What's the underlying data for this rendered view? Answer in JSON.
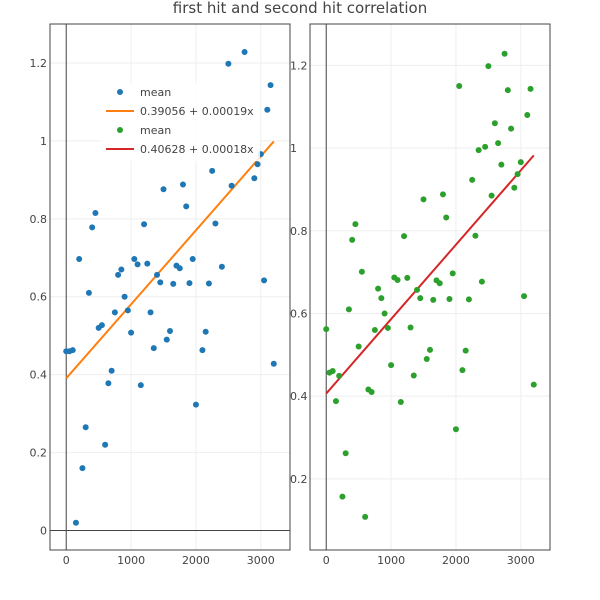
{
  "chart_data": [
    {
      "type": "scatter",
      "title": "first hit and second hit correlation",
      "xlim": [
        -250,
        3450
      ],
      "ylim": [
        -0.05,
        1.3
      ],
      "xticks": [
        0,
        1000,
        2000,
        3000
      ],
      "xtick_labels": [
        "0",
        "1000",
        "2000",
        "3000"
      ],
      "yticks": [
        0,
        0.2,
        0.4,
        0.6,
        0.8,
        1,
        1.2
      ],
      "ytick_labels": [
        "0",
        "0.2",
        "0.4",
        "0.6",
        "0.8",
        "1",
        "1.2"
      ],
      "grid": true,
      "legend_position": "top-right",
      "series": [
        {
          "name": "mean",
          "color": "#1f77b4",
          "marker": "circle",
          "points": [
            [
              0,
              0.46
            ],
            [
              50,
              0.46
            ],
            [
              100,
              0.463
            ],
            [
              150,
              0.02
            ],
            [
              200,
              0.697
            ],
            [
              250,
              0.16
            ],
            [
              300,
              0.265
            ],
            [
              350,
              0.61
            ],
            [
              400,
              0.778
            ],
            [
              450,
              0.815
            ],
            [
              500,
              0.52
            ],
            [
              550,
              0.527
            ],
            [
              600,
              0.22
            ],
            [
              650,
              0.378
            ],
            [
              700,
              0.41
            ],
            [
              750,
              0.56
            ],
            [
              800,
              0.656
            ],
            [
              850,
              0.67
            ],
            [
              900,
              0.6
            ],
            [
              950,
              0.565
            ],
            [
              1000,
              0.508
            ],
            [
              1050,
              0.697
            ],
            [
              1100,
              0.683
            ],
            [
              1150,
              0.373
            ],
            [
              1200,
              0.786
            ],
            [
              1250,
              0.685
            ],
            [
              1300,
              0.56
            ],
            [
              1350,
              0.468
            ],
            [
              1400,
              0.656
            ],
            [
              1450,
              0.637
            ],
            [
              1500,
              0.876
            ],
            [
              1550,
              0.49
            ],
            [
              1600,
              0.512
            ],
            [
              1650,
              0.633
            ],
            [
              1700,
              0.68
            ],
            [
              1750,
              0.673
            ],
            [
              1800,
              0.888
            ],
            [
              1850,
              0.832
            ],
            [
              1900,
              0.635
            ],
            [
              1950,
              0.697
            ],
            [
              2000,
              0.323
            ],
            [
              2100,
              0.463
            ],
            [
              2150,
              0.51
            ],
            [
              2200,
              0.634
            ],
            [
              2250,
              0.923
            ],
            [
              2300,
              0.788
            ],
            [
              2400,
              0.677
            ],
            [
              2500,
              1.198
            ],
            [
              2550,
              0.885
            ],
            [
              2750,
              1.228
            ],
            [
              2900,
              0.904
            ],
            [
              2950,
              0.94
            ],
            [
              3000,
              0.966
            ],
            [
              3050,
              0.642
            ],
            [
              3100,
              1.08
            ],
            [
              3150,
              1.143
            ],
            [
              3200,
              0.428
            ]
          ],
          "fit": {
            "name": "0.39056 + 0.00019x",
            "color": "#ff7f0e",
            "intercept": 0.39056,
            "slope": 0.00019,
            "x_range": [
              0,
              3200
            ]
          }
        }
      ]
    },
    {
      "type": "scatter",
      "xlim": [
        -250,
        3450
      ],
      "ylim": [
        0.028,
        1.3
      ],
      "xticks": [
        0,
        1000,
        2000,
        3000
      ],
      "xtick_labels": [
        "0",
        "1000",
        "2000",
        "3000"
      ],
      "yticks": [
        0.2,
        0.4,
        0.6,
        0.8,
        1,
        1.2
      ],
      "ytick_labels": [
        "0.2",
        "0.4",
        "0.6",
        "0.8",
        "1",
        "1.2"
      ],
      "grid": true,
      "series": [
        {
          "name": "mean",
          "color": "#2ca02c",
          "marker": "circle",
          "points": [
            [
              0,
              0.562
            ],
            [
              50,
              0.457
            ],
            [
              100,
              0.461
            ],
            [
              150,
              0.388
            ],
            [
              200,
              0.449
            ],
            [
              250,
              0.157
            ],
            [
              300,
              0.262
            ],
            [
              350,
              0.61
            ],
            [
              400,
              0.778
            ],
            [
              450,
              0.816
            ],
            [
              500,
              0.52
            ],
            [
              550,
              0.701
            ],
            [
              600,
              0.108
            ],
            [
              650,
              0.416
            ],
            [
              700,
              0.41
            ],
            [
              750,
              0.56
            ],
            [
              800,
              0.66
            ],
            [
              850,
              0.637
            ],
            [
              900,
              0.6
            ],
            [
              950,
              0.565
            ],
            [
              1000,
              0.475
            ],
            [
              1050,
              0.687
            ],
            [
              1100,
              0.681
            ],
            [
              1150,
              0.386
            ],
            [
              1200,
              0.787
            ],
            [
              1250,
              0.686
            ],
            [
              1300,
              0.566
            ],
            [
              1350,
              0.45
            ],
            [
              1400,
              0.657
            ],
            [
              1450,
              0.637
            ],
            [
              1500,
              0.876
            ],
            [
              1550,
              0.49
            ],
            [
              1600,
              0.512
            ],
            [
              1650,
              0.633
            ],
            [
              1700,
              0.68
            ],
            [
              1750,
              0.673
            ],
            [
              1800,
              0.888
            ],
            [
              1850,
              0.832
            ],
            [
              1900,
              0.635
            ],
            [
              1950,
              0.697
            ],
            [
              2000,
              0.32
            ],
            [
              2050,
              1.15
            ],
            [
              2100,
              0.463
            ],
            [
              2150,
              0.51
            ],
            [
              2200,
              0.634
            ],
            [
              2250,
              0.923
            ],
            [
              2300,
              0.788
            ],
            [
              2350,
              0.995
            ],
            [
              2400,
              0.677
            ],
            [
              2450,
              1.003
            ],
            [
              2500,
              1.198
            ],
            [
              2550,
              0.885
            ],
            [
              2600,
              1.06
            ],
            [
              2650,
              1.012
            ],
            [
              2700,
              0.96
            ],
            [
              2750,
              1.228
            ],
            [
              2800,
              1.14
            ],
            [
              2850,
              1.047
            ],
            [
              2900,
              0.904
            ],
            [
              2950,
              0.937
            ],
            [
              3000,
              0.966
            ],
            [
              3050,
              0.642
            ],
            [
              3100,
              1.08
            ],
            [
              3150,
              1.143
            ],
            [
              3200,
              0.428
            ]
          ],
          "fit": {
            "name": "0.40628 + 0.00018x",
            "color": "#d62728",
            "intercept": 0.40628,
            "slope": 0.00018,
            "x_range": [
              0,
              3200
            ]
          }
        }
      ]
    }
  ]
}
